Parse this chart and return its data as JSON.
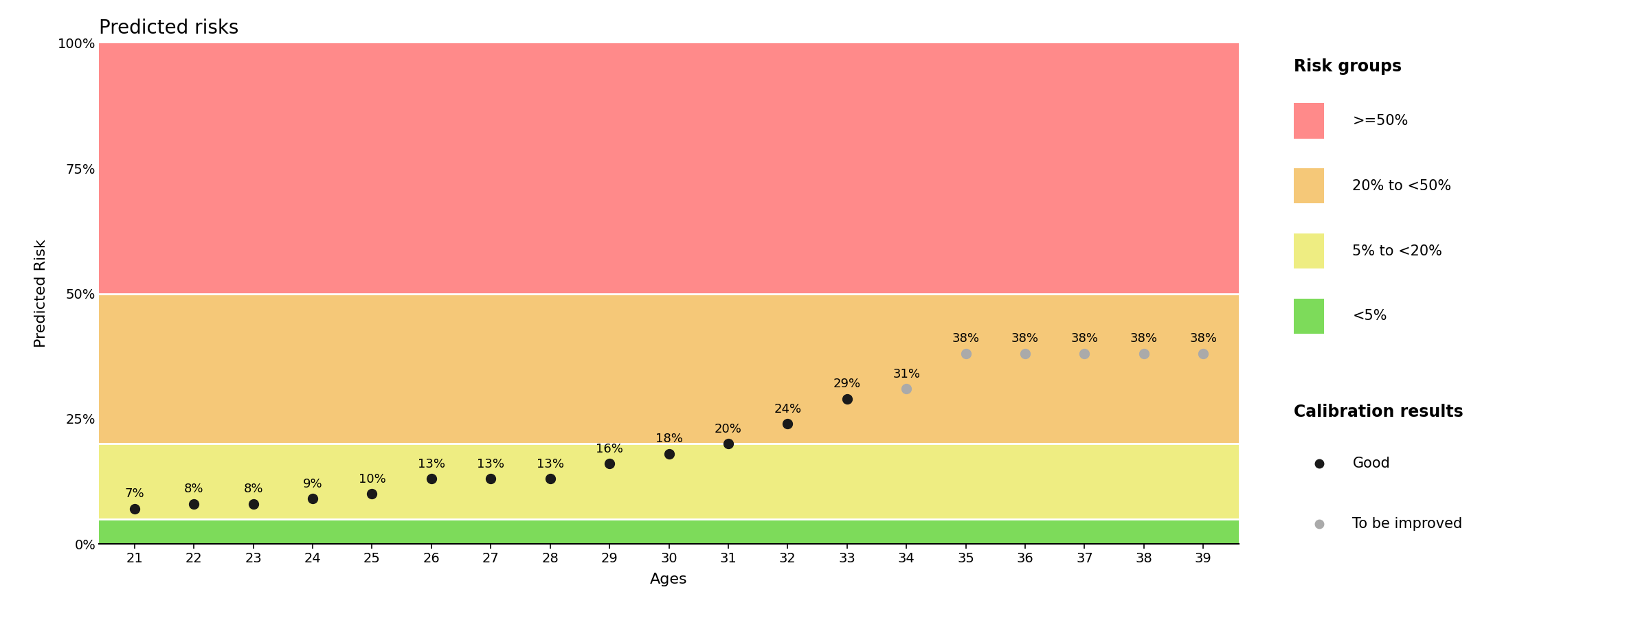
{
  "title": "Predicted risks",
  "xlabel": "Ages",
  "ylabel": "Predicted Risk",
  "ages": [
    21,
    22,
    23,
    24,
    25,
    26,
    27,
    28,
    29,
    30,
    31,
    32,
    33,
    34,
    35,
    36,
    37,
    38,
    39
  ],
  "predicted_risks": [
    0.07,
    0.08,
    0.08,
    0.09,
    0.1,
    0.13,
    0.13,
    0.13,
    0.16,
    0.18,
    0.2,
    0.24,
    0.29,
    0.31,
    0.38,
    0.38,
    0.38,
    0.38,
    0.38
  ],
  "calibration": [
    "good",
    "good",
    "good",
    "good",
    "good",
    "good",
    "good",
    "good",
    "good",
    "good",
    "good",
    "good",
    "good",
    "improved",
    "improved",
    "improved",
    "improved",
    "improved",
    "improved"
  ],
  "labels": [
    "7%",
    "8%",
    "8%",
    "9%",
    "10%",
    "13%",
    "13%",
    "13%",
    "16%",
    "18%",
    "20%",
    "24%",
    "29%",
    "31%",
    "38%",
    "38%",
    "38%",
    "38%",
    "38%"
  ],
  "zone_colors": {
    "ge50": "#FF8A8A",
    "20to50": "#F5C878",
    "5to20": "#EEED82",
    "lt5": "#7DDB5A"
  },
  "zone_boundaries": [
    0.0,
    0.05,
    0.2,
    0.5,
    1.0
  ],
  "dot_colors": {
    "good": "#1a1a1a",
    "improved": "#aaaaaa"
  },
  "background_color": "#ffffff",
  "legend_risk_groups_labels": [
    ">=50%",
    "20% to <50%",
    "5% to <20%",
    "<5%"
  ],
  "legend_risk_groups_colors": [
    "#FF8A8A",
    "#F5C878",
    "#EEED82",
    "#7DDB5A"
  ],
  "legend_calibration_labels": [
    "Good",
    "To be improved"
  ],
  "legend_calibration_colors": [
    "#1a1a1a",
    "#aaaaaa"
  ],
  "ylim": [
    0,
    1.0
  ],
  "xlim": [
    20.4,
    39.6
  ],
  "title_fontsize": 20,
  "axis_label_fontsize": 16,
  "tick_fontsize": 14,
  "legend_title_fontsize": 17,
  "legend_fontsize": 15,
  "annotation_fontsize": 13
}
